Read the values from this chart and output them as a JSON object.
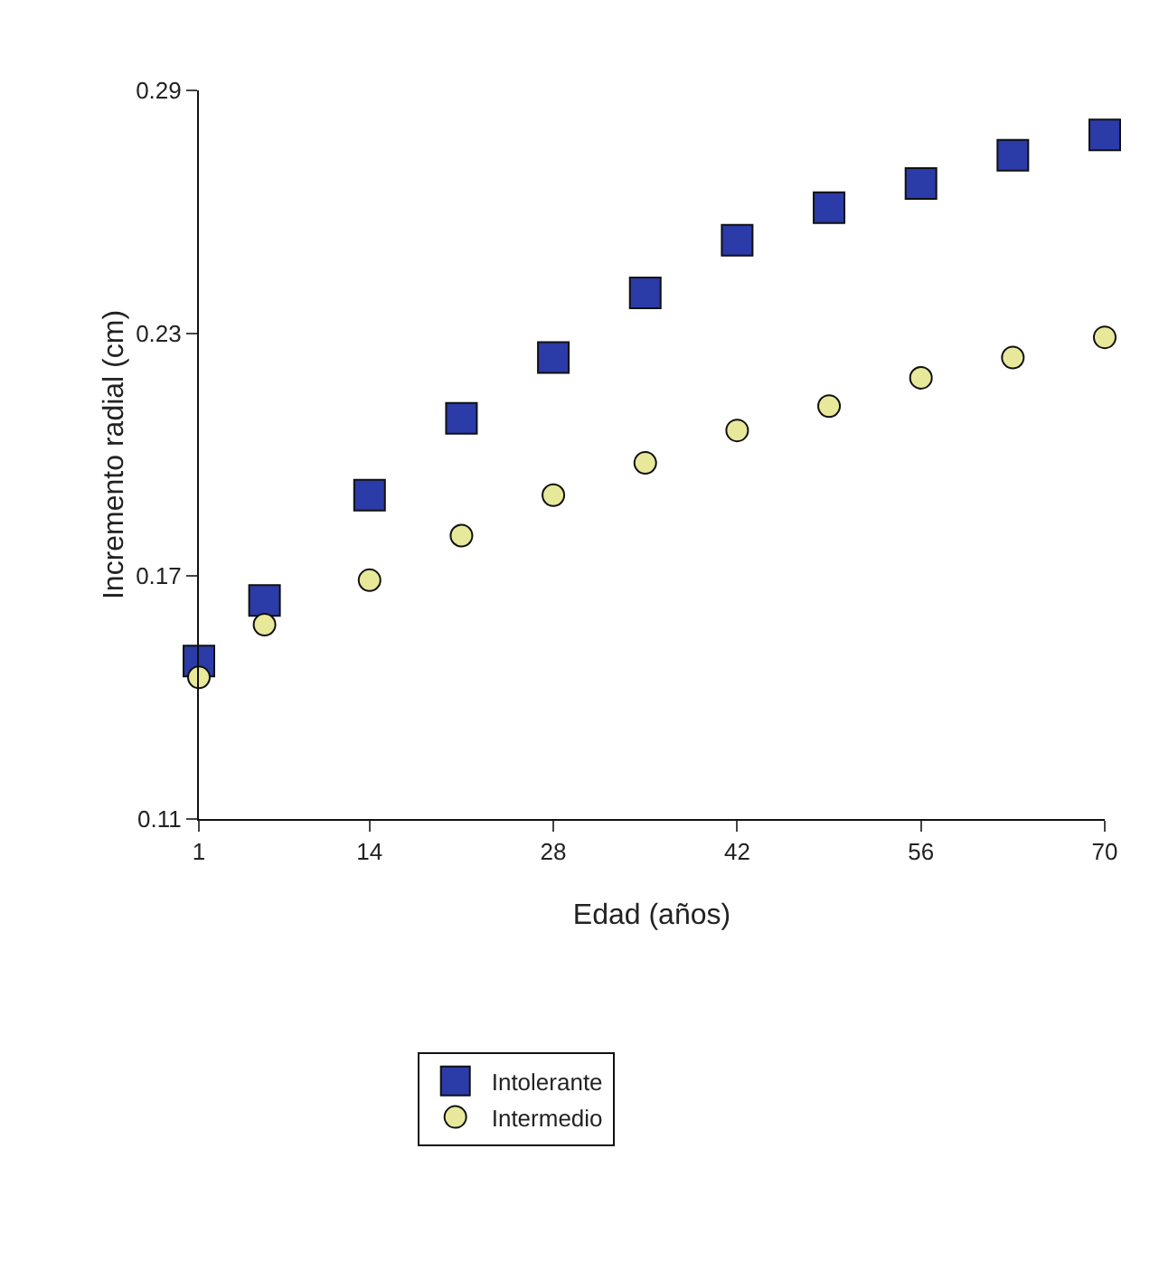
{
  "chart_data": {
    "type": "scatter",
    "xlabel": "Edad (años)",
    "ylabel": "Incremento radial (cm)",
    "xlim": [
      1,
      70
    ],
    "xticks": [
      1,
      14,
      28,
      42,
      56,
      70
    ],
    "ylim": [
      0.11,
      0.29
    ],
    "yticks": [
      0.11,
      0.17,
      0.23,
      0.29
    ],
    "grid": false,
    "legend": "bottom",
    "series": [
      {
        "name": "Intolerante",
        "color": "#2b3ba8",
        "marker": "square",
        "x": [
          1,
          6,
          14,
          21,
          28,
          35,
          42,
          49,
          56,
          63,
          70
        ],
        "values": [
          0.149,
          0.164,
          0.19,
          0.209,
          0.224,
          0.24,
          0.253,
          0.261,
          0.267,
          0.274,
          0.279
        ]
      },
      {
        "name": "Intermedio",
        "color": "#e8e89a",
        "marker": "circle",
        "x": [
          1,
          6,
          14,
          21,
          28,
          35,
          42,
          49,
          56,
          63,
          70
        ],
        "values": [
          0.145,
          0.158,
          0.169,
          0.18,
          0.19,
          0.198,
          0.206,
          0.212,
          0.219,
          0.224,
          0.229
        ]
      }
    ]
  }
}
